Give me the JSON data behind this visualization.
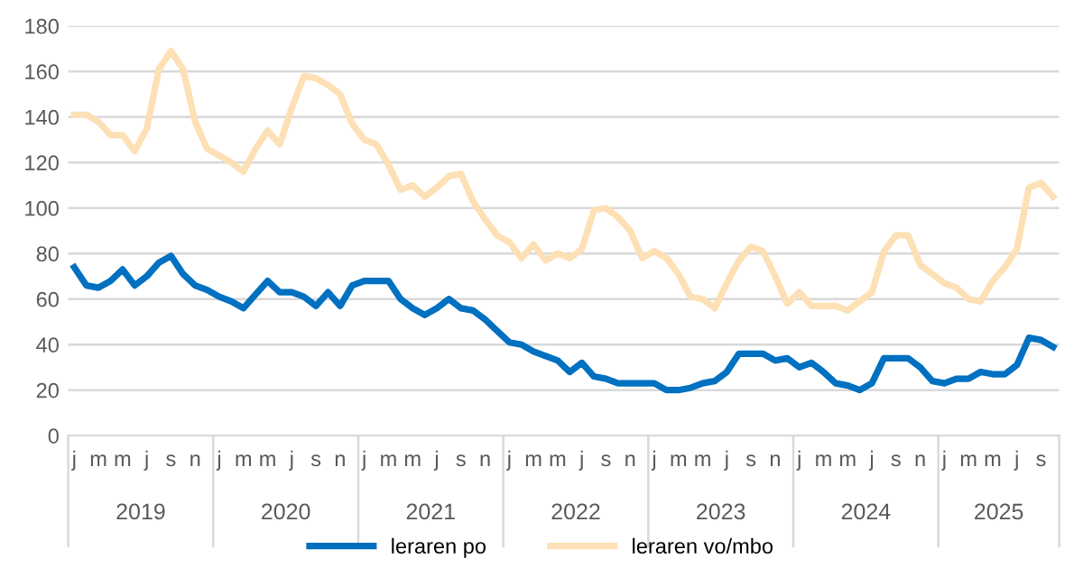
{
  "chart_data": {
    "type": "line",
    "categories": [
      "j",
      null,
      "m",
      null,
      "m",
      null,
      "j",
      null,
      "s",
      null,
      "n",
      null,
      "j",
      null,
      "m",
      null,
      "m",
      null,
      "j",
      null,
      "s",
      null,
      "n",
      null,
      "j",
      null,
      "m",
      null,
      "m",
      null,
      "j",
      null,
      "s",
      null,
      "n",
      null,
      "j",
      null,
      "m",
      null,
      "m",
      null,
      "j",
      null,
      "s",
      null,
      "n",
      null,
      "j",
      null,
      "m",
      null,
      "m",
      null,
      "j",
      null,
      "s",
      null,
      "n",
      null,
      "j",
      null,
      "m",
      null,
      "m",
      null,
      "j",
      null,
      "s",
      null,
      "n",
      null,
      "j",
      null,
      "m",
      null,
      "m",
      null,
      "j",
      null,
      "s",
      null
    ],
    "series": [
      {
        "name": "leraren po",
        "color": "#0070c0",
        "values": [
          74,
          66,
          65,
          68,
          73,
          66,
          70,
          76,
          79,
          71,
          66,
          64,
          61,
          59,
          56,
          62,
          68,
          63,
          63,
          61,
          57,
          63,
          57,
          66,
          68,
          68,
          68,
          60,
          56,
          53,
          56,
          60,
          56,
          55,
          51,
          46,
          41,
          40,
          37,
          35,
          33,
          28,
          32,
          26,
          25,
          23,
          23,
          23,
          23,
          20,
          20,
          21,
          23,
          24,
          28,
          36,
          36,
          36,
          33,
          34,
          30,
          32,
          28,
          23,
          22,
          20,
          23,
          34,
          34,
          34,
          30,
          24,
          23,
          25,
          25,
          28,
          27,
          27,
          31,
          43,
          42,
          39
        ]
      },
      {
        "name": "leraren vo/mbo",
        "color": "#fde0b5",
        "values": [
          141,
          141,
          138,
          132,
          132,
          125,
          135,
          161,
          169,
          161,
          138,
          126,
          123,
          120,
          116,
          126,
          134,
          128,
          144,
          158,
          157,
          154,
          150,
          137,
          130,
          128,
          119,
          108,
          110,
          105,
          109,
          114,
          115,
          103,
          95,
          88,
          85,
          78,
          84,
          77,
          80,
          78,
          82,
          99,
          100,
          96,
          90,
          78,
          81,
          78,
          71,
          61,
          60,
          56,
          67,
          77,
          83,
          81,
          70,
          58,
          63,
          57,
          57,
          57,
          55,
          59,
          63,
          81,
          88,
          88,
          75,
          71,
          67,
          65,
          60,
          59,
          68,
          74,
          82,
          109,
          111,
          105
        ]
      }
    ],
    "annotations": [
      "2019",
      "2020",
      "2021",
      "2022",
      "2023",
      "2024",
      "2025"
    ],
    "ylim": [
      0,
      180
    ],
    "yticks": [
      0,
      20,
      40,
      60,
      80,
      100,
      120,
      140,
      160,
      180
    ],
    "grid": "y",
    "legend": "bottom",
    "line_style": "solid",
    "marker": "none"
  }
}
